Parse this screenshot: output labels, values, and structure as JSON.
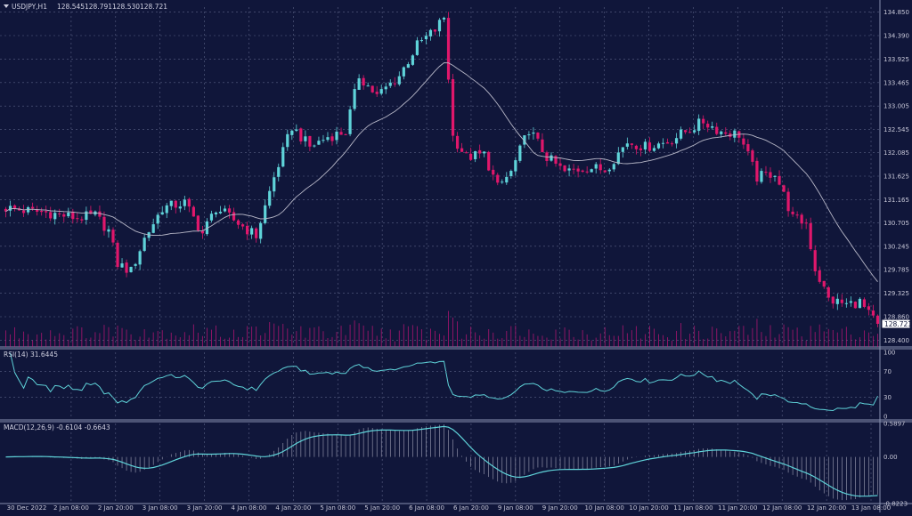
{
  "symbol": "USDJPY,H1",
  "ohlc": {
    "open": "128.545",
    "high": "128.791",
    "low": "128.530",
    "close": "128.721"
  },
  "current_price_label": "128.721",
  "rsi_label": "RSI(14) 31.6445",
  "macd_label": "MACD(12,26,9) -0.6104 -0.6643",
  "colors": {
    "background": "#10163a",
    "bull": "#5fd3d9",
    "bear": "#e0176b",
    "grid": "#5a6285",
    "ma": "#b8b8c8",
    "indicator": "#5fd3d9",
    "volume": "#c8157a"
  },
  "chart_data": {
    "type": "candlestick",
    "x_ticks": [
      "30 Dec 2022",
      "2 Jan 08:00",
      "2 Jan 20:00",
      "3 Jan 08:00",
      "3 Jan 20:00",
      "4 Jan 08:00",
      "4 Jan 20:00",
      "5 Jan 08:00",
      "5 Jan 20:00",
      "6 Jan 08:00",
      "6 Jan 20:00",
      "9 Jan 08:00",
      "9 Jan 20:00",
      "10 Jan 08:00",
      "10 Jan 20:00",
      "11 Jan 08:00",
      "11 Jan 20:00",
      "12 Jan 08:00",
      "12 Jan 20:00",
      "13 Jan 08:00"
    ],
    "y_ticks": [
      "134.850",
      "134.390",
      "133.925",
      "133.465",
      "133.005",
      "132.545",
      "132.085",
      "131.625",
      "131.165",
      "130.705",
      "130.245",
      "129.785",
      "129.325",
      "128.860",
      "128.400"
    ],
    "ylim": [
      128.3,
      134.95
    ],
    "price_anchors": [
      {
        "i": 0,
        "p": 131.0
      },
      {
        "i": 4,
        "p": 130.95
      },
      {
        "i": 10,
        "p": 130.9
      },
      {
        "i": 16,
        "p": 130.8
      },
      {
        "i": 20,
        "p": 130.85
      },
      {
        "i": 23,
        "p": 130.55
      },
      {
        "i": 25,
        "p": 129.9
      },
      {
        "i": 28,
        "p": 129.75
      },
      {
        "i": 31,
        "p": 130.4
      },
      {
        "i": 35,
        "p": 131.0
      },
      {
        "i": 40,
        "p": 131.1
      },
      {
        "i": 44,
        "p": 130.5
      },
      {
        "i": 47,
        "p": 131.0
      },
      {
        "i": 52,
        "p": 130.7
      },
      {
        "i": 56,
        "p": 130.45
      },
      {
        "i": 60,
        "p": 131.6
      },
      {
        "i": 64,
        "p": 132.6
      },
      {
        "i": 68,
        "p": 132.2
      },
      {
        "i": 72,
        "p": 132.4
      },
      {
        "i": 76,
        "p": 132.5
      },
      {
        "i": 79,
        "p": 133.6
      },
      {
        "i": 83,
        "p": 133.2
      },
      {
        "i": 88,
        "p": 133.6
      },
      {
        "i": 92,
        "p": 134.2
      },
      {
        "i": 96,
        "p": 134.5
      },
      {
        "i": 98,
        "p": 134.75
      },
      {
        "i": 100,
        "p": 132.4
      },
      {
        "i": 103,
        "p": 132.0
      },
      {
        "i": 107,
        "p": 132.05
      },
      {
        "i": 110,
        "p": 131.4
      },
      {
        "i": 113,
        "p": 131.7
      },
      {
        "i": 117,
        "p": 132.55
      },
      {
        "i": 121,
        "p": 132.0
      },
      {
        "i": 125,
        "p": 131.7
      },
      {
        "i": 130,
        "p": 131.8
      },
      {
        "i": 134,
        "p": 131.75
      },
      {
        "i": 139,
        "p": 132.3
      },
      {
        "i": 143,
        "p": 132.2
      },
      {
        "i": 148,
        "p": 132.3
      },
      {
        "i": 152,
        "p": 132.5
      },
      {
        "i": 156,
        "p": 132.7
      },
      {
        "i": 160,
        "p": 132.5
      },
      {
        "i": 164,
        "p": 132.45
      },
      {
        "i": 168,
        "p": 131.6
      },
      {
        "i": 172,
        "p": 131.7
      },
      {
        "i": 176,
        "p": 130.8
      },
      {
        "i": 179,
        "p": 130.7
      },
      {
        "i": 181,
        "p": 129.8
      },
      {
        "i": 184,
        "p": 129.2
      },
      {
        "i": 188,
        "p": 129.1
      },
      {
        "i": 191,
        "p": 129.15
      },
      {
        "i": 193,
        "p": 128.9
      },
      {
        "i": 195,
        "p": 128.72
      }
    ],
    "rsi": {
      "levels": [
        100,
        70,
        30,
        0
      ],
      "last": 31.6445
    },
    "macd": {
      "ticks": [
        "0.5897",
        "0.00",
        "-0.8223"
      ],
      "ylim": [
        -0.8223,
        0.5897
      ],
      "signal": -0.6643,
      "main": -0.6104
    }
  }
}
